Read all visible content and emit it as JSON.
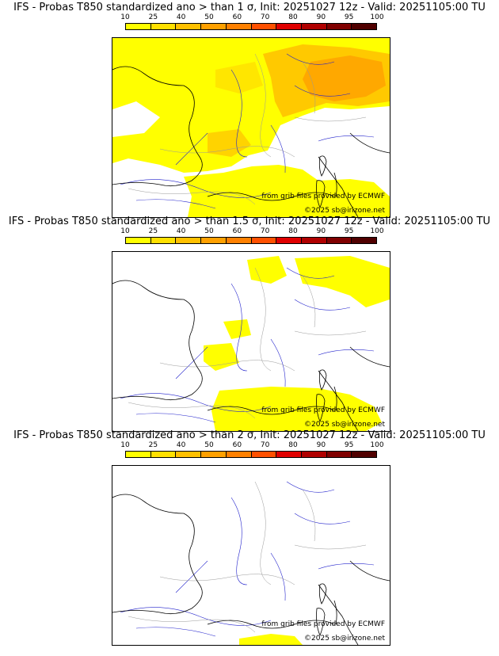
{
  "colors": {
    "scale": [
      "#ffff00",
      "#ffe000",
      "#ffc000",
      "#ffa000",
      "#ff8000",
      "#ff5000",
      "#e00000",
      "#b00000",
      "#800000",
      "#500000"
    ],
    "coast": "#000000",
    "rivers": "#2222cc",
    "borders": "#999999"
  },
  "scale_labels": [
    "10",
    "25",
    "40",
    "50",
    "60",
    "70",
    "80",
    "90",
    "95",
    "100"
  ],
  "panels": [
    {
      "title": "IFS - Probas T850  standardized ano > than 1 σ, Init: 20251027 12z - Valid: 20251105:00 TU",
      "credit_grib": "from grib files provided by ECMWF",
      "credit_copy": "©2025 sb@irizone.net"
    },
    {
      "title": "IFS - Probas T850  standardized ano > than 1.5 σ, Init: 20251027 12z - Valid: 20251105:00 TU",
      "credit_grib": "from grib files provided by ECMWF",
      "credit_copy": "©2025 sb@irizone.net"
    },
    {
      "title": "IFS - Probas T850  standardized ano > than 2 σ, Init: 20251027 12z - Valid: 20251105:00 TU",
      "credit_grib": "from grib files provided by ECMWF",
      "credit_copy": "©2025 sb@irizone.net"
    }
  ]
}
